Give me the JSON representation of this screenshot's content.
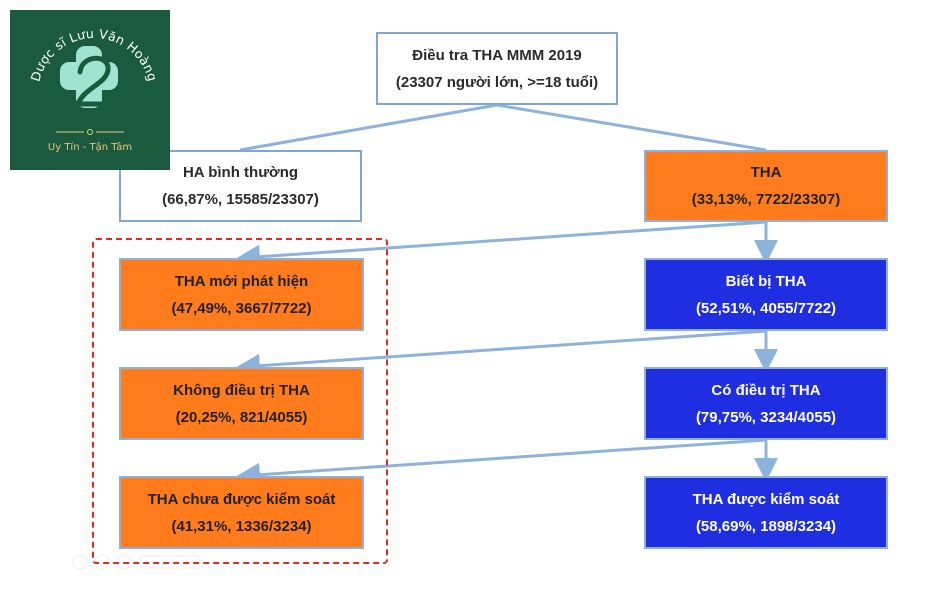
{
  "logo": {
    "brand_name": "Dược sĩ Lưu Văn Hoàng",
    "tagline": "Uy Tín - Tận Tâm"
  },
  "nodes": {
    "survey": {
      "line1": "Điều tra THA MMM 2019",
      "line2": "(23307 người lớn, >=18 tuổi)"
    },
    "normal_bp": {
      "line1": "HA bình thường",
      "line2": "(66,87%, 15585/23307)"
    },
    "hypertension": {
      "line1": "THA",
      "line2": "(33,13%, 7722/23307)"
    },
    "newly_detected": {
      "line1": "THA mới phát hiện",
      "line2": "(47,49%, 3667/7722)"
    },
    "aware": {
      "line1": "Biết bị THA",
      "line2": "(52,51%, 4055/7722)"
    },
    "untreated": {
      "line1": "Không điều trị THA",
      "line2": "(20,25%, 821/4055)"
    },
    "treated": {
      "line1": "Có điều trị THA",
      "line2": "(79,75%, 3234/4055)"
    },
    "uncontrolled": {
      "line1": "THA chưa được kiểm soát",
      "line2": "(41,31%, 1336/3234)"
    },
    "controlled": {
      "line1": "THA được kiểm soát",
      "line2": "(58,69%, 1898/3234)"
    }
  },
  "colors": {
    "orange": "#ff7b1c",
    "blue": "#1f2ee0",
    "connector": "#8db3dc",
    "dashed_frame": "#e02a2a",
    "logo_bg": "#1a5b3f",
    "logo_mint": "#9fe3d0",
    "logo_gold": "#e6c67e"
  }
}
